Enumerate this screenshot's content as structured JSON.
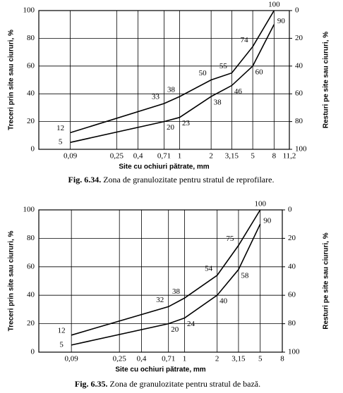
{
  "chart_data": [
    {
      "type": "line",
      "log_x": true,
      "grid": true,
      "xlabel": "Site cu ochiuri pătrate, mm",
      "ylabel": "Treceri prin site sau ciururi, %",
      "y2label": "Resturi pe site sau ciururi, %",
      "caption_label": "Fig. 6.34.",
      "caption_text": "Zona de granulozitate pentru stratul de reprofilare.",
      "xlim": [
        0.045,
        11.2
      ],
      "xticks": [
        {
          "value": 0.09,
          "label": "0,09"
        },
        {
          "value": 0.25,
          "label": "0,25"
        },
        {
          "value": 0.4,
          "label": "0,4"
        },
        {
          "value": 0.71,
          "label": "0,71"
        },
        1,
        2,
        {
          "value": 3.15,
          "label": "3,15"
        },
        5,
        8,
        {
          "value": 11.2,
          "label": "11,2"
        }
      ],
      "ylim": [
        0,
        100
      ],
      "yticks": [
        0,
        20,
        40,
        60,
        80,
        100
      ],
      "y2lim": [
        100,
        0
      ],
      "y2ticks": [
        0,
        20,
        40,
        60,
        80,
        100
      ],
      "x": [
        0.09,
        0.71,
        1,
        2,
        3.15,
        5,
        8
      ],
      "series": [
        {
          "color": "#000000",
          "values": [
            12,
            33,
            38,
            50,
            55,
            74,
            100
          ]
        },
        {
          "color": "#000000",
          "values": [
            5,
            20,
            23,
            38,
            46,
            60,
            90
          ]
        }
      ]
    },
    {
      "type": "line",
      "log_x": true,
      "grid": true,
      "xlabel": "Site cu ochiuri pătrate, mm",
      "ylabel": "Treceri prin site sau ciururi, %",
      "y2label": "Resturi pe site sau ciururi, %",
      "caption_label": "Fig. 6.35.",
      "caption_text": "Zona de granulozitate pentru stratul de bază.",
      "xlim": [
        0.045,
        8
      ],
      "xticks": [
        {
          "value": 0.09,
          "label": "0,09"
        },
        {
          "value": 0.25,
          "label": "0,25"
        },
        {
          "value": 0.4,
          "label": "0,4"
        },
        {
          "value": 0.71,
          "label": "0,71"
        },
        1,
        2,
        {
          "value": 3.15,
          "label": "3,15"
        },
        5,
        8
      ],
      "ylim": [
        0,
        100
      ],
      "yticks": [
        0,
        20,
        40,
        60,
        80,
        100
      ],
      "y2lim": [
        100,
        0
      ],
      "y2ticks": [
        0,
        20,
        40,
        60,
        80,
        100
      ],
      "x": [
        0.09,
        0.71,
        1,
        2,
        3.15,
        5
      ],
      "series": [
        {
          "color": "#000000",
          "values": [
            12,
            32,
            38,
            54,
            75,
            100
          ]
        },
        {
          "color": "#000000",
          "values": [
            5,
            20,
            24,
            40,
            58,
            90
          ]
        }
      ]
    }
  ]
}
